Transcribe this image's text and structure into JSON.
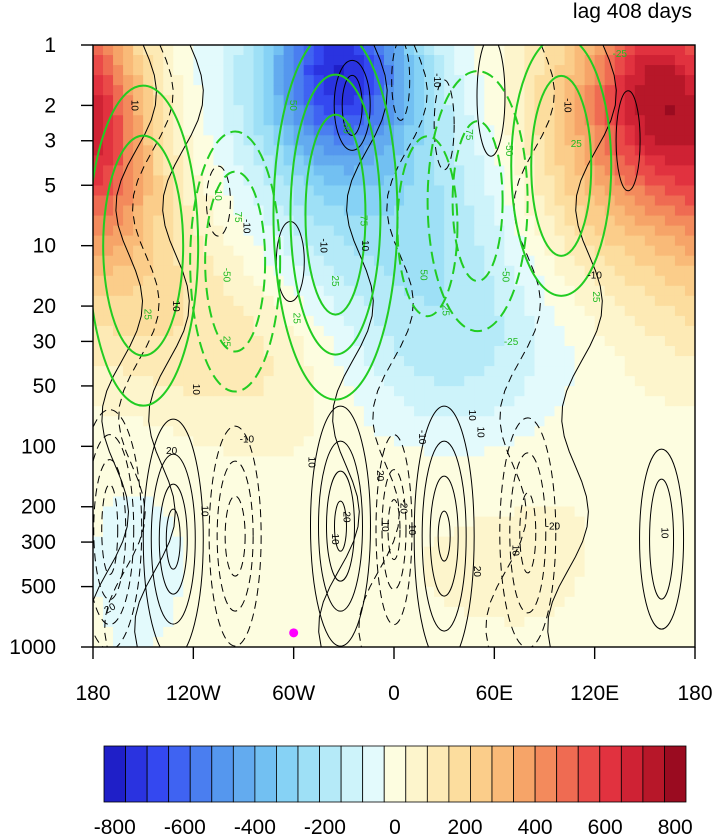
{
  "chart_data": {
    "type": "heatmap",
    "title": "lag 408 days",
    "xlabel": "",
    "ylabel": "",
    "x_ticks": [
      {
        "value": -180,
        "label": "180"
      },
      {
        "value": -120,
        "label": "120W"
      },
      {
        "value": -60,
        "label": "60W"
      },
      {
        "value": 0,
        "label": "0"
      },
      {
        "value": 60,
        "label": "60E"
      },
      {
        "value": 120,
        "label": "120E"
      },
      {
        "value": 180,
        "label": "180"
      }
    ],
    "y_ticks": [
      {
        "value": 1,
        "label": "1"
      },
      {
        "value": 2,
        "label": "2"
      },
      {
        "value": 3,
        "label": "3"
      },
      {
        "value": 5,
        "label": "5"
      },
      {
        "value": 10,
        "label": "10"
      },
      {
        "value": 20,
        "label": "20"
      },
      {
        "value": 30,
        "label": "30"
      },
      {
        "value": 50,
        "label": "50"
      },
      {
        "value": 100,
        "label": "100"
      },
      {
        "value": 200,
        "label": "200"
      },
      {
        "value": 300,
        "label": "300"
      },
      {
        "value": 500,
        "label": "500"
      },
      {
        "value": 1000,
        "label": "1000"
      }
    ],
    "xlim": [
      -180,
      180
    ],
    "ylim": [
      1,
      1000
    ],
    "y_scale": "log",
    "y_reversed": true,
    "colorbar": {
      "min": -800,
      "max": 800,
      "step": 50,
      "tick_labels": [
        "-800",
        "-600",
        "-400",
        "-200",
        "0",
        "200",
        "400",
        "600",
        "800"
      ],
      "colors": [
        "#1f1fc8",
        "#2a33e0",
        "#3448f0",
        "#3f63f2",
        "#4a7ef0",
        "#5597ee",
        "#63abef",
        "#72c0f2",
        "#86d2f5",
        "#9ee0f6",
        "#b5eaf8",
        "#cdf3fa",
        "#e3fafc",
        "#fdfde0",
        "#fdf5cc",
        "#fdeab5",
        "#fcdd9e",
        "#fbcd8a",
        "#f9ba78",
        "#f6a468",
        "#f38a5c",
        "#ef6b52",
        "#ea4a48",
        "#e1323f",
        "#cf2234",
        "#b71729",
        "#9a0b20"
      ]
    },
    "shading_blobs": [
      {
        "lon": -172,
        "p": 3,
        "value": 350,
        "wlon": 22,
        "wp": 1.3
      },
      {
        "lon": -150,
        "p": 12,
        "value": 150,
        "wlon": 50,
        "wp": 1.4
      },
      {
        "lon": -80,
        "p": 35,
        "value": 120,
        "wlon": 50,
        "wp": 1.0
      },
      {
        "lon": -40,
        "p": 1.5,
        "value": -250,
        "wlon": 40,
        "wp": 1.2
      },
      {
        "lon": -30,
        "p": 1.2,
        "value": -450,
        "wlon": 28,
        "wp": 1.0
      },
      {
        "lon": 5,
        "p": 8,
        "value": -220,
        "wlon": 70,
        "wp": 1.6
      },
      {
        "lon": 40,
        "p": 40,
        "value": -120,
        "wlon": 50,
        "wp": 1.0
      },
      {
        "lon": 120,
        "p": 3,
        "value": 300,
        "wlon": 40,
        "wp": 1.6
      },
      {
        "lon": 155,
        "p": 1.5,
        "value": 450,
        "wlon": 25,
        "wp": 1.2
      },
      {
        "lon": -160,
        "p": 300,
        "value": -60,
        "wlon": 40,
        "wp": 2.0
      },
      {
        "lon": 80,
        "p": 250,
        "value": 40,
        "wlon": 100,
        "wp": 2.0
      }
    ],
    "contour_labels_black": [
      {
        "lon": -155,
        "p": 2,
        "text": "10",
        "rot": 90
      },
      {
        "lon": -130,
        "p": 20,
        "text": "10",
        "rot": 90
      },
      {
        "lon": -118,
        "p": 52,
        "text": "10",
        "rot": 90
      },
      {
        "lon": -133,
        "p": 105,
        "text": "20",
        "rot": 0
      },
      {
        "lon": -113,
        "p": 210,
        "text": "10",
        "rot": 90
      },
      {
        "lon": -170,
        "p": 640,
        "text": "20",
        "rot": -30
      },
      {
        "lon": -88,
        "p": 8,
        "text": "-10",
        "rot": 90
      },
      {
        "lon": -88,
        "p": 92,
        "text": "-10",
        "rot": 0
      },
      {
        "lon": -49,
        "p": 120,
        "text": "10",
        "rot": 90
      },
      {
        "lon": -28,
        "p": 225,
        "text": "20",
        "rot": 90
      },
      {
        "lon": -35,
        "p": 290,
        "text": "10",
        "rot": 90
      },
      {
        "lon": -8,
        "p": 140,
        "text": "20",
        "rot": 90
      },
      {
        "lon": -17,
        "p": 10,
        "text": "10",
        "rot": 90
      },
      {
        "lon": -5,
        "p": 250,
        "text": "10",
        "rot": 90
      },
      {
        "lon": 6,
        "p": 200,
        "text": "-20",
        "rot": 90
      },
      {
        "lon": 11,
        "p": 260,
        "text": "10",
        "rot": 90
      },
      {
        "lon": 17,
        "p": 90,
        "text": "-10",
        "rot": 90
      },
      {
        "lon": 26,
        "p": 1.5,
        "text": "-10",
        "rot": 90
      },
      {
        "lon": 47,
        "p": 70,
        "text": "10",
        "rot": 90
      },
      {
        "lon": 50,
        "p": 420,
        "text": "20",
        "rot": 90
      },
      {
        "lon": 52,
        "p": 85,
        "text": "10",
        "rot": 90
      },
      {
        "lon": 73,
        "p": 330,
        "text": "10",
        "rot": 90
      },
      {
        "lon": 95,
        "p": 250,
        "text": "-20",
        "rot": 0
      },
      {
        "lon": 104,
        "p": 2,
        "text": "-10",
        "rot": 90
      },
      {
        "lon": 120,
        "p": 14,
        "text": "-10",
        "rot": 0
      },
      {
        "lon": 162,
        "p": 270,
        "text": "10",
        "rot": 90
      },
      {
        "lon": -42,
        "p": 10,
        "text": "-10",
        "rot": 90
      }
    ],
    "contour_labels_green": [
      {
        "lon": -60,
        "p": 2,
        "text": "50",
        "rot": 90
      },
      {
        "lon": -28,
        "p": 2.6,
        "text": "50",
        "rot": 90
      },
      {
        "lon": -105,
        "p": 5.5,
        "text": "-10",
        "rot": 90
      },
      {
        "lon": -93,
        "p": 7.2,
        "text": "75",
        "rot": 90
      },
      {
        "lon": -100,
        "p": 14,
        "text": "-50",
        "rot": 90
      },
      {
        "lon": -147,
        "p": 22,
        "text": "25",
        "rot": 90
      },
      {
        "lon": -100,
        "p": 30,
        "text": "25",
        "rot": 90
      },
      {
        "lon": -58,
        "p": 23,
        "text": "25",
        "rot": 90
      },
      {
        "lon": -18,
        "p": 7.5,
        "text": "75",
        "rot": 90
      },
      {
        "lon": -35,
        "p": 15,
        "text": "25",
        "rot": 90
      },
      {
        "lon": 18,
        "p": 14,
        "text": "50",
        "rot": 90
      },
      {
        "lon": 31,
        "p": 21,
        "text": "25",
        "rot": 90
      },
      {
        "lon": 45,
        "p": 2.8,
        "text": "75",
        "rot": 90
      },
      {
        "lon": 67,
        "p": 14,
        "text": "-50",
        "rot": 90
      },
      {
        "lon": 69,
        "p": 3.3,
        "text": "-50",
        "rot": 90
      },
      {
        "lon": 70,
        "p": 30,
        "text": "-25",
        "rot": 0
      },
      {
        "lon": 109,
        "p": 3.1,
        "text": "25",
        "rot": 0
      },
      {
        "lon": 121,
        "p": 18,
        "text": "25",
        "rot": 90
      },
      {
        "lon": 135,
        "p": 1.1,
        "text": "-25",
        "rot": 0
      }
    ],
    "marker": {
      "lon": -60,
      "p": 850,
      "color": "#ff00ff"
    }
  }
}
